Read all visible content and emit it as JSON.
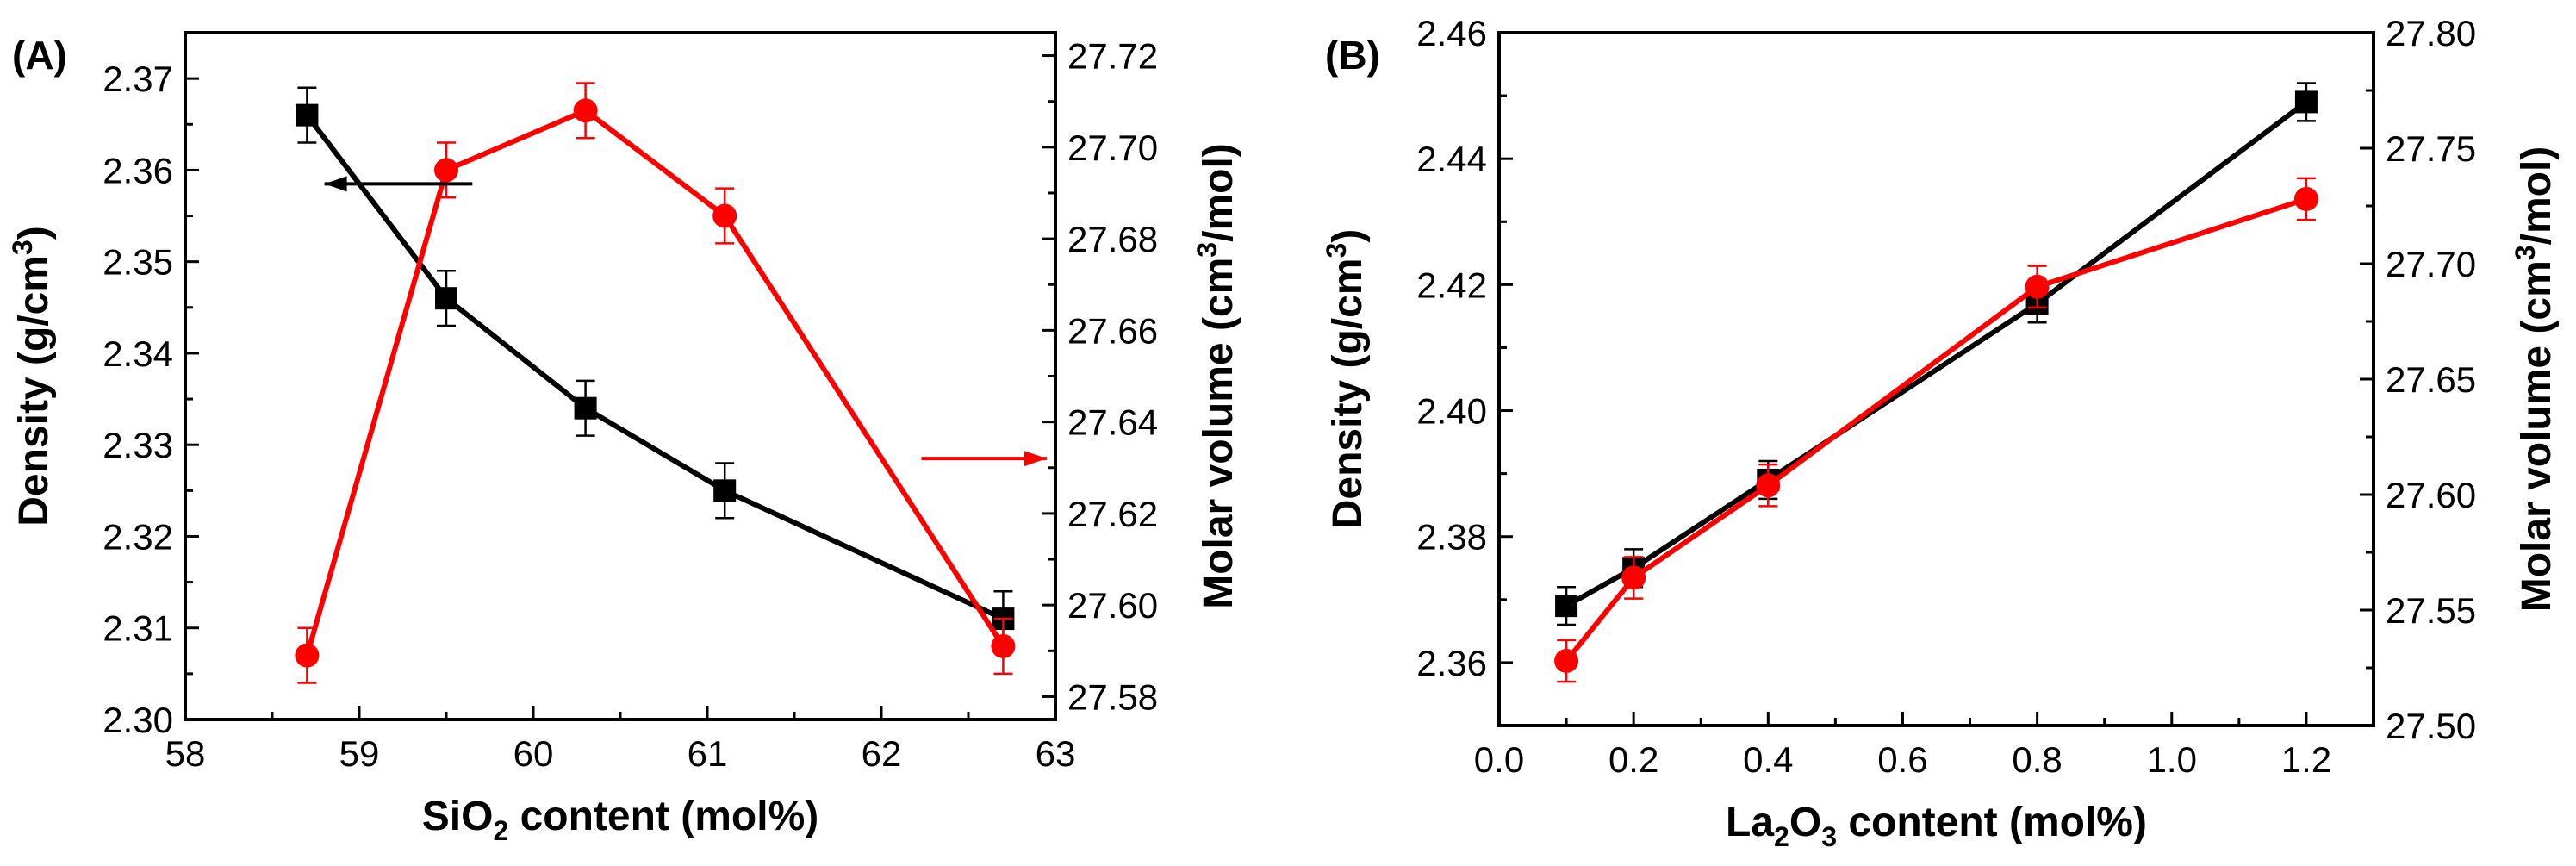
{
  "colors": {
    "density": "#000000",
    "molar_volume": "#ff0000",
    "axis": "#000000",
    "background": "#ffffff"
  },
  "chart_data": [
    {
      "panel_label": "(A)",
      "type": "line",
      "xlabel": {
        "pre": "SiO",
        "sub": "2",
        "post": " content (mol%)"
      },
      "ylabel_left": {
        "pre": "Density (g/cm",
        "sup": "3",
        "post": ")"
      },
      "ylabel_right": {
        "pre": "Molar volume (cm",
        "sup": "3",
        "post": "/mol)"
      },
      "xlim": [
        58,
        63
      ],
      "ylim_left": [
        2.3,
        2.375
      ],
      "ylim_right": [
        27.575,
        27.725
      ],
      "x_ticks": [
        "58",
        "59",
        "60",
        "61",
        "62",
        "63"
      ],
      "x_tick_values": [
        58,
        59,
        60,
        61,
        62,
        63
      ],
      "y_ticks_left": [
        "2.30",
        "2.31",
        "2.32",
        "2.33",
        "2.34",
        "2.35",
        "2.36",
        "2.37"
      ],
      "y_tick_values_left": [
        2.3,
        2.31,
        2.32,
        2.33,
        2.34,
        2.35,
        2.36,
        2.37
      ],
      "y_ticks_right": [
        "27.58",
        "27.60",
        "27.62",
        "27.64",
        "27.66",
        "27.68",
        "27.70",
        "27.72"
      ],
      "y_tick_values_right": [
        27.58,
        27.6,
        27.62,
        27.64,
        27.66,
        27.68,
        27.7,
        27.72
      ],
      "series": [
        {
          "name": "Density",
          "axis": "left",
          "marker": "square",
          "color": "#000000",
          "x": [
            58.7,
            59.5,
            60.3,
            61.1,
            62.7
          ],
          "values": [
            2.366,
            2.346,
            2.334,
            2.325,
            2.311
          ],
          "errors": [
            0.003,
            0.003,
            0.003,
            0.003,
            0.003
          ]
        },
        {
          "name": "Molar volume",
          "axis": "right",
          "marker": "circle",
          "color": "#ff0000",
          "x": [
            58.7,
            59.5,
            60.3,
            61.1,
            62.7
          ],
          "values": [
            27.589,
            27.695,
            27.708,
            27.685,
            27.591
          ],
          "errors": [
            0.006,
            0.006,
            0.006,
            0.006,
            0.006
          ]
        }
      ],
      "annotations": [
        {
          "type": "arrow",
          "direction": "left",
          "points_to": "left axis",
          "color": "#000000",
          "at": {
            "x": [
              58.8,
              59.65
            ],
            "y": 2.3585,
            "axis": "left"
          }
        },
        {
          "type": "arrow",
          "direction": "right",
          "points_to": "right axis",
          "color": "#ff0000",
          "at": {
            "x": [
              62.23,
              62.95
            ],
            "y": 27.632,
            "axis": "right"
          }
        }
      ]
    },
    {
      "panel_label": "(B)",
      "type": "line",
      "xlabel": {
        "pre": "La",
        "sub": "2",
        "post": "O",
        "sub2": "3",
        "post2": " content (mol%)"
      },
      "ylabel_left": {
        "pre": "Density (g/cm",
        "sup": "3",
        "post": ")"
      },
      "ylabel_right": {
        "pre": "Molar volume (cm",
        "sup": "3",
        "post": "/mol)"
      },
      "xlim": [
        0.0,
        1.3
      ],
      "ylim_left": [
        2.35,
        2.46
      ],
      "ylim_right": [
        27.5,
        27.8
      ],
      "x_ticks": [
        "0.0",
        "0.2",
        "0.4",
        "0.6",
        "0.8",
        "1.0",
        "1.2"
      ],
      "x_tick_values": [
        0.0,
        0.2,
        0.4,
        0.6,
        0.8,
        1.0,
        1.2
      ],
      "y_ticks_left": [
        "2.36",
        "2.38",
        "2.40",
        "2.42",
        "2.44",
        "2.46"
      ],
      "y_tick_values_left": [
        2.36,
        2.38,
        2.4,
        2.42,
        2.44,
        2.46
      ],
      "y_ticks_right": [
        "27.50",
        "27.55",
        "27.60",
        "27.65",
        "27.70",
        "27.75",
        "27.80"
      ],
      "y_tick_values_right": [
        27.5,
        27.55,
        27.6,
        27.65,
        27.7,
        27.75,
        27.8
      ],
      "series": [
        {
          "name": "Density",
          "axis": "left",
          "marker": "square",
          "color": "#000000",
          "x": [
            0.1,
            0.2,
            0.4,
            0.8,
            1.2
          ],
          "values": [
            2.369,
            2.375,
            2.389,
            2.417,
            2.449
          ],
          "errors": [
            0.003,
            0.003,
            0.003,
            0.003,
            0.003
          ]
        },
        {
          "name": "Molar volume",
          "axis": "right",
          "marker": "circle",
          "color": "#ff0000",
          "x": [
            0.1,
            0.2,
            0.4,
            0.8,
            1.2
          ],
          "values": [
            27.528,
            27.564,
            27.604,
            27.69,
            27.728
          ],
          "errors": [
            0.009,
            0.009,
            0.009,
            0.009,
            0.009
          ]
        }
      ],
      "annotations": []
    }
  ]
}
